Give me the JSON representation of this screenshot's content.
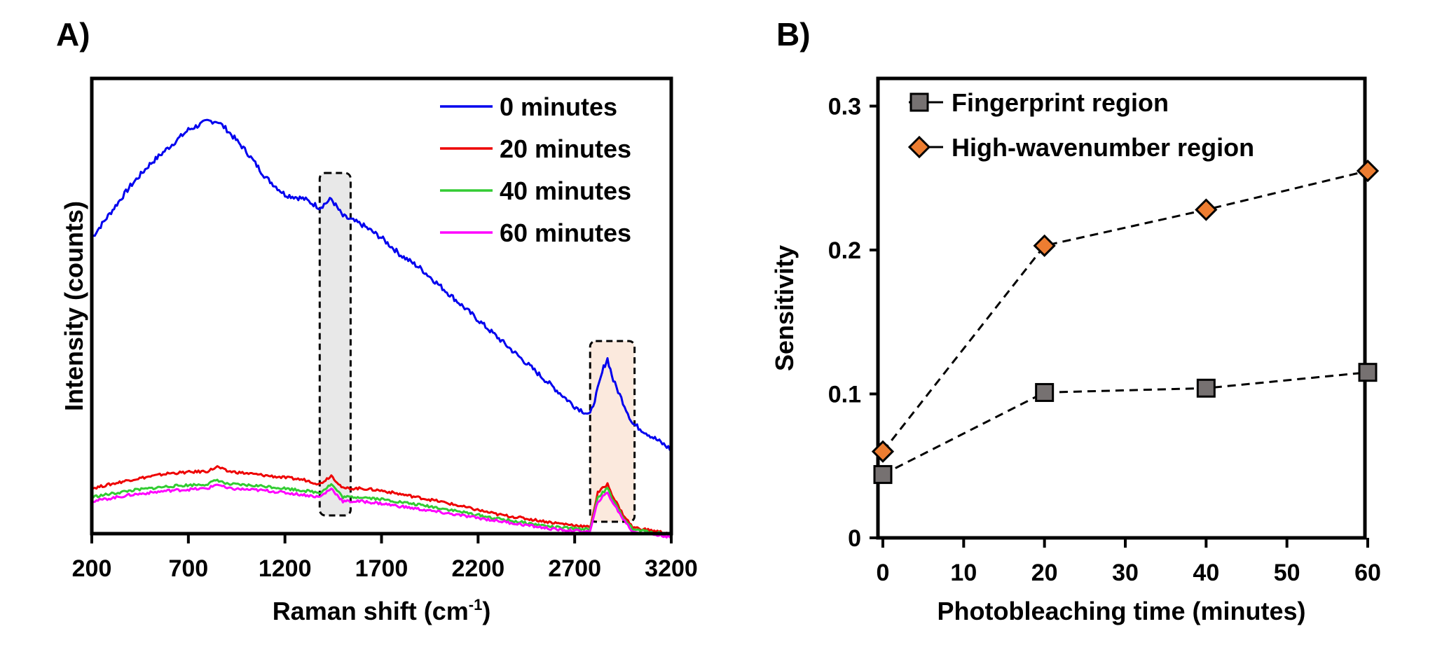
{
  "panels": {
    "a": {
      "label": "A)"
    },
    "b": {
      "label": "B)"
    }
  },
  "chart_data": [
    {
      "type": "line",
      "panel": "A)",
      "title": "",
      "xlabel": "Raman shift (cm-1)",
      "xlabel_main": "Raman shift (cm",
      "xlabel_sup": "-1",
      "xlabel_close": ")",
      "ylabel": "Intensity (counts)",
      "xlim": [
        200,
        3200
      ],
      "x_ticks": [
        "200",
        "700",
        "1200",
        "1700",
        "2200",
        "2700",
        "3200"
      ],
      "y_ticks": [],
      "legend_position": "upper right",
      "highlight_regions": [
        {
          "name": "fingerprint-band",
          "x_range": [
            1380,
            1540
          ],
          "fill": "#e8e8e8"
        },
        {
          "name": "high-wavenumber-band",
          "x_range": [
            2780,
            3010
          ],
          "fill": "#fbe9dd"
        }
      ],
      "series": [
        {
          "name": "0 minutes",
          "color": "#0000ee",
          "x": [
            200,
            300,
            400,
            500,
            600,
            700,
            800,
            850,
            900,
            1000,
            1100,
            1200,
            1300,
            1380,
            1440,
            1500,
            1600,
            1700,
            1800,
            1900,
            2000,
            2100,
            2200,
            2300,
            2400,
            2500,
            2600,
            2700,
            2780,
            2820,
            2850,
            2870,
            2900,
            2950,
            3000,
            3100,
            3200
          ],
          "values": [
            0.73,
            0.79,
            0.85,
            0.9,
            0.94,
            0.98,
            1.0,
            1.0,
            0.98,
            0.93,
            0.87,
            0.83,
            0.82,
            0.8,
            0.82,
            0.78,
            0.76,
            0.73,
            0.69,
            0.66,
            0.62,
            0.58,
            0.54,
            0.5,
            0.46,
            0.42,
            0.38,
            0.34,
            0.32,
            0.38,
            0.43,
            0.45,
            0.4,
            0.35,
            0.3,
            0.27,
            0.24
          ]
        },
        {
          "name": "20 minutes",
          "color": "#ee0000",
          "x": [
            200,
            400,
            600,
            800,
            850,
            900,
            1100,
            1300,
            1380,
            1440,
            1500,
            1600,
            1700,
            2000,
            2300,
            2600,
            2700,
            2780,
            2820,
            2870,
            2900,
            2950,
            3000,
            3200
          ],
          "values": [
            0.15,
            0.17,
            0.185,
            0.19,
            0.2,
            0.19,
            0.18,
            0.17,
            0.16,
            0.18,
            0.15,
            0.15,
            0.145,
            0.12,
            0.09,
            0.07,
            0.065,
            0.06,
            0.14,
            0.16,
            0.13,
            0.09,
            0.06,
            0.045
          ]
        },
        {
          "name": "40 minutes",
          "color": "#33cc33",
          "x": [
            200,
            400,
            600,
            800,
            850,
            900,
            1100,
            1300,
            1380,
            1440,
            1500,
            1600,
            1700,
            2000,
            2300,
            2600,
            2700,
            2780,
            2820,
            2870,
            2900,
            2950,
            3000,
            3200
          ],
          "values": [
            0.13,
            0.145,
            0.155,
            0.16,
            0.17,
            0.16,
            0.155,
            0.145,
            0.14,
            0.16,
            0.13,
            0.13,
            0.125,
            0.105,
            0.08,
            0.06,
            0.057,
            0.055,
            0.13,
            0.15,
            0.12,
            0.085,
            0.055,
            0.043
          ]
        },
        {
          "name": "60 minutes",
          "color": "#ff00ff",
          "x": [
            200,
            400,
            600,
            800,
            850,
            900,
            1100,
            1300,
            1380,
            1440,
            1500,
            1600,
            1700,
            2000,
            2300,
            2600,
            2700,
            2780,
            2820,
            2870,
            2900,
            2950,
            3000,
            3200
          ],
          "values": [
            0.12,
            0.135,
            0.145,
            0.15,
            0.16,
            0.15,
            0.145,
            0.135,
            0.13,
            0.15,
            0.12,
            0.12,
            0.115,
            0.095,
            0.075,
            0.055,
            0.052,
            0.05,
            0.12,
            0.14,
            0.115,
            0.08,
            0.05,
            0.038
          ]
        }
      ]
    },
    {
      "type": "line",
      "panel": "B)",
      "title": "",
      "xlabel": "Photobleaching time (minutes)",
      "ylabel": "Sensitivity",
      "xlim": [
        0,
        60
      ],
      "ylim": [
        0,
        0.32
      ],
      "x_ticks": [
        "0",
        "10",
        "20",
        "30",
        "40",
        "50",
        "60"
      ],
      "y_ticks": [
        "0",
        "0.1",
        "0.2",
        "0.3"
      ],
      "grid": false,
      "legend_position": "upper left",
      "categories": [
        0,
        20,
        40,
        60
      ],
      "series": [
        {
          "name": "Fingerprint region",
          "marker": "square",
          "line": "dashed",
          "color": "#767171",
          "values": [
            0.044,
            0.101,
            0.104,
            0.115
          ]
        },
        {
          "name": "High-wavenumber region",
          "marker": "diamond",
          "line": "dashed",
          "color": "#ed7d31",
          "values": [
            0.06,
            0.203,
            0.228,
            0.255
          ]
        }
      ]
    }
  ]
}
